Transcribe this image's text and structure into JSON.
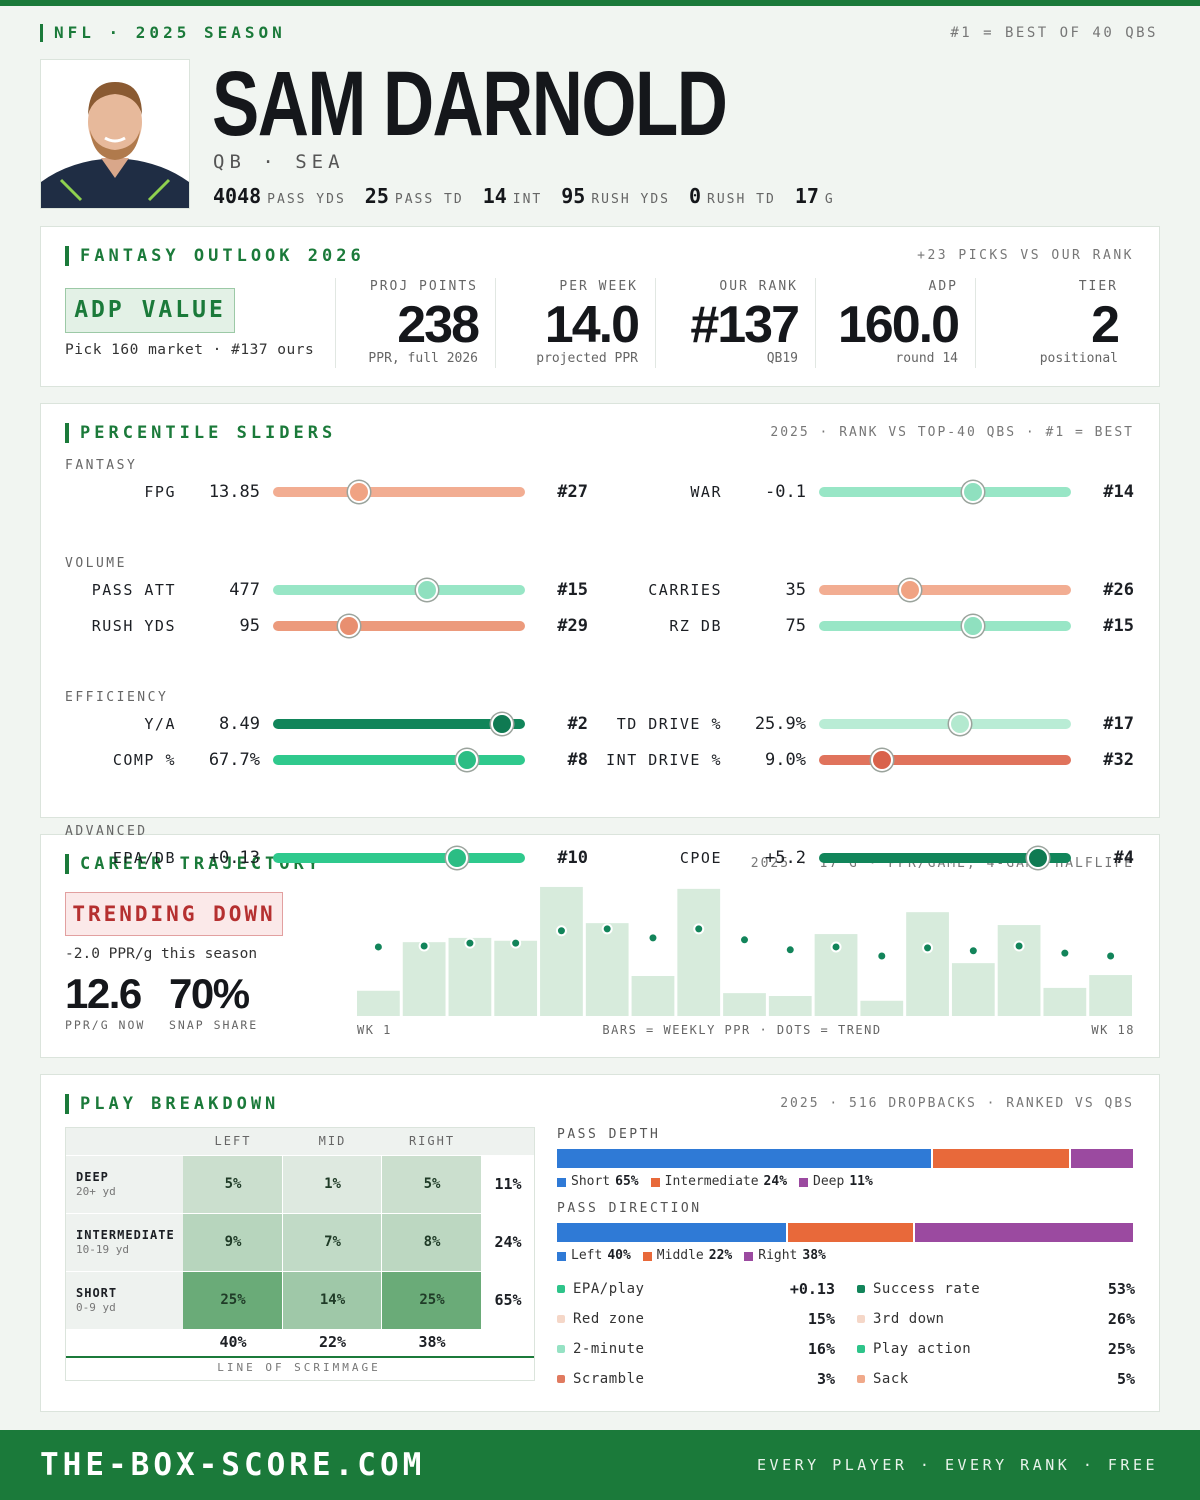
{
  "header": {
    "league": "NFL · 2025 SEASON",
    "note": "#1 = BEST OF 40 QBS",
    "name": "SAM DARNOLD",
    "position": "QB · SEA",
    "stats": [
      {
        "value": "4048",
        "label": "PASS YDS"
      },
      {
        "value": "25",
        "label": "PASS TD"
      },
      {
        "value": "14",
        "label": "INT"
      },
      {
        "value": "95",
        "label": "RUSH YDS"
      },
      {
        "value": "0",
        "label": "RUSH TD"
      },
      {
        "value": "17",
        "label": "G"
      }
    ]
  },
  "outlook": {
    "title": "FANTASY OUTLOOK 2026",
    "note": "+23 PICKS VS OUR RANK",
    "badge": "ADP VALUE",
    "badge_sub": "Pick 160 market · #137 ours",
    "metrics": [
      {
        "label": "PROJ POINTS",
        "value": "238",
        "sub": "PPR, full 2026"
      },
      {
        "label": "PER WEEK",
        "value": "14.0",
        "sub": "projected PPR"
      },
      {
        "label": "OUR RANK",
        "value": "#137",
        "sub": "QB19"
      },
      {
        "label": "ADP",
        "value": "160.0",
        "sub": "round 14"
      },
      {
        "label": "TIER",
        "value": "2",
        "sub": "positional"
      }
    ]
  },
  "sliders": {
    "title": "PERCENTILE SLIDERS",
    "note": "2025 · RANK VS TOP-40 QBS · #1 = BEST",
    "groups": [
      {
        "name": "FANTASY",
        "rows": [
          [
            {
              "label": "FPG",
              "value": "13.85",
              "rank": "#27",
              "percentile": 34
            },
            {
              "label": "WAR",
              "value": "-0.1",
              "rank": "#14",
              "percentile": 61
            }
          ]
        ]
      },
      {
        "name": "VOLUME",
        "rows": [
          [
            {
              "label": "PASS ATT",
              "value": "477",
              "rank": "#15",
              "percentile": 61
            },
            {
              "label": "CARRIES",
              "value": "35",
              "rank": "#26",
              "percentile": 36
            }
          ],
          [
            {
              "label": "RUSH YDS",
              "value": "95",
              "rank": "#29",
              "percentile": 30
            },
            {
              "label": "RZ DB",
              "value": "75",
              "rank": "#15",
              "percentile": 61
            }
          ]
        ]
      },
      {
        "name": "EFFICIENCY",
        "rows": [
          [
            {
              "label": "Y/A",
              "value": "8.49",
              "rank": "#2",
              "percentile": 91
            },
            {
              "label": "TD DRIVE %",
              "value": "25.9%",
              "rank": "#17",
              "percentile": 56
            }
          ],
          [
            {
              "label": "COMP %",
              "value": "67.7%",
              "rank": "#8",
              "percentile": 77
            },
            {
              "label": "INT DRIVE %",
              "value": "9.0%",
              "rank": "#32",
              "percentile": 25
            }
          ]
        ]
      },
      {
        "name": "ADVANCED",
        "rows": [
          [
            {
              "label": "EPA/DB",
              "value": "+0.13",
              "rank": "#10",
              "percentile": 73
            },
            {
              "label": "CPOE",
              "value": "+5.2",
              "rank": "#4",
              "percentile": 87
            }
          ]
        ]
      }
    ]
  },
  "career": {
    "title": "CAREER TRAJECTORY",
    "note": "2025 · 17 G · PPR/GAME, 4-GAME HALFLIFE",
    "badge": "TRENDING DOWN",
    "badge_sub": "-2.0 PPR/g this season",
    "big": [
      {
        "value": "12.6",
        "label": "PPR/G NOW"
      },
      {
        "value": "70%",
        "label": "SNAP SHARE"
      }
    ],
    "chart_data": {
      "type": "bar",
      "x_start": "WK 1",
      "x_end": "WK 18",
      "caption": "BARS = WEEKLY PPR · DOTS = TREND",
      "ylim": [
        0,
        27.3
      ],
      "series": [
        {
          "name": "Weekly PPR",
          "color": "#d7ebdc",
          "values": [
            5.3,
            15.5,
            16.4,
            15.8,
            27.1,
            19.5,
            8.4,
            26.7,
            4.8,
            4.2,
            17.2,
            3.2,
            21.8,
            11.1,
            19.1,
            5.9,
            8.6
          ]
        },
        {
          "name": "Trend",
          "color": "#12845a",
          "values": [
            14.5,
            14.7,
            15.3,
            15.3,
            17.9,
            18.3,
            16.4,
            18.3,
            16.0,
            13.9,
            14.5,
            12.6,
            14.3,
            13.7,
            14.7,
            13.2,
            12.6
          ]
        }
      ]
    }
  },
  "breakdown": {
    "title": "PLAY BREAKDOWN",
    "note": "2025 · 516 DROPBACKS · RANKED VS QBS",
    "table": {
      "columns": [
        "LEFT",
        "MID",
        "RIGHT"
      ],
      "rows": [
        {
          "name": "DEEP",
          "sub": "20+ yd",
          "cells": [
            {
              "value": 5,
              "label": "5%"
            },
            {
              "value": 1,
              "label": "1%"
            },
            {
              "value": 5,
              "label": "5%"
            }
          ],
          "total": "11%"
        },
        {
          "name": "INTERMEDIATE",
          "sub": "10-19 yd",
          "cells": [
            {
              "value": 9,
              "label": "9%"
            },
            {
              "value": 7,
              "label": "7%"
            },
            {
              "value": 8,
              "label": "8%"
            }
          ],
          "total": "24%"
        },
        {
          "name": "SHORT",
          "sub": "0-9 yd",
          "cells": [
            {
              "value": 25,
              "label": "25%"
            },
            {
              "value": 14,
              "label": "14%"
            },
            {
              "value": 25,
              "label": "25%"
            }
          ],
          "total": "65%"
        }
      ],
      "column_totals": [
        "40%",
        "22%",
        "38%"
      ],
      "footer": "LINE OF SCRIMMAGE"
    },
    "bars": [
      {
        "title": "PASS DEPTH",
        "segments": [
          {
            "name": "Short",
            "value": 65,
            "label": "65%",
            "color": "#2f7ad6"
          },
          {
            "name": "Intermediate",
            "value": 24,
            "label": "24%",
            "color": "#e8693a"
          },
          {
            "name": "Deep",
            "value": 11,
            "label": "11%",
            "color": "#9b4aa0"
          }
        ]
      },
      {
        "title": "PASS DIRECTION",
        "segments": [
          {
            "name": "Left",
            "value": 40,
            "label": "40%",
            "color": "#2f7ad6"
          },
          {
            "name": "Middle",
            "value": 22,
            "label": "22%",
            "color": "#e8693a"
          },
          {
            "name": "Right",
            "value": 38,
            "label": "38%",
            "color": "#9b4aa0"
          }
        ]
      }
    ],
    "stats": [
      {
        "name": "EPA/play",
        "value": "+0.13",
        "color": "#2ec48a"
      },
      {
        "name": "Success rate",
        "value": "53%",
        "color": "#12845a"
      },
      {
        "name": "Red zone",
        "value": "15%",
        "color": "#f5d7c8"
      },
      {
        "name": "3rd down",
        "value": "26%",
        "color": "#f5d7c8"
      },
      {
        "name": "2-minute",
        "value": "16%",
        "color": "#96e2c4"
      },
      {
        "name": "Play action",
        "value": "25%",
        "color": "#2ec48a"
      },
      {
        "name": "Scramble",
        "value": "3%",
        "color": "#e07a5f"
      },
      {
        "name": "Sack",
        "value": "5%",
        "color": "#f0a98a"
      }
    ]
  },
  "footer": {
    "site": "THE-BOX-SCORE.COM",
    "tagline": "EVERY PLAYER · EVERY RANK · FREE"
  }
}
